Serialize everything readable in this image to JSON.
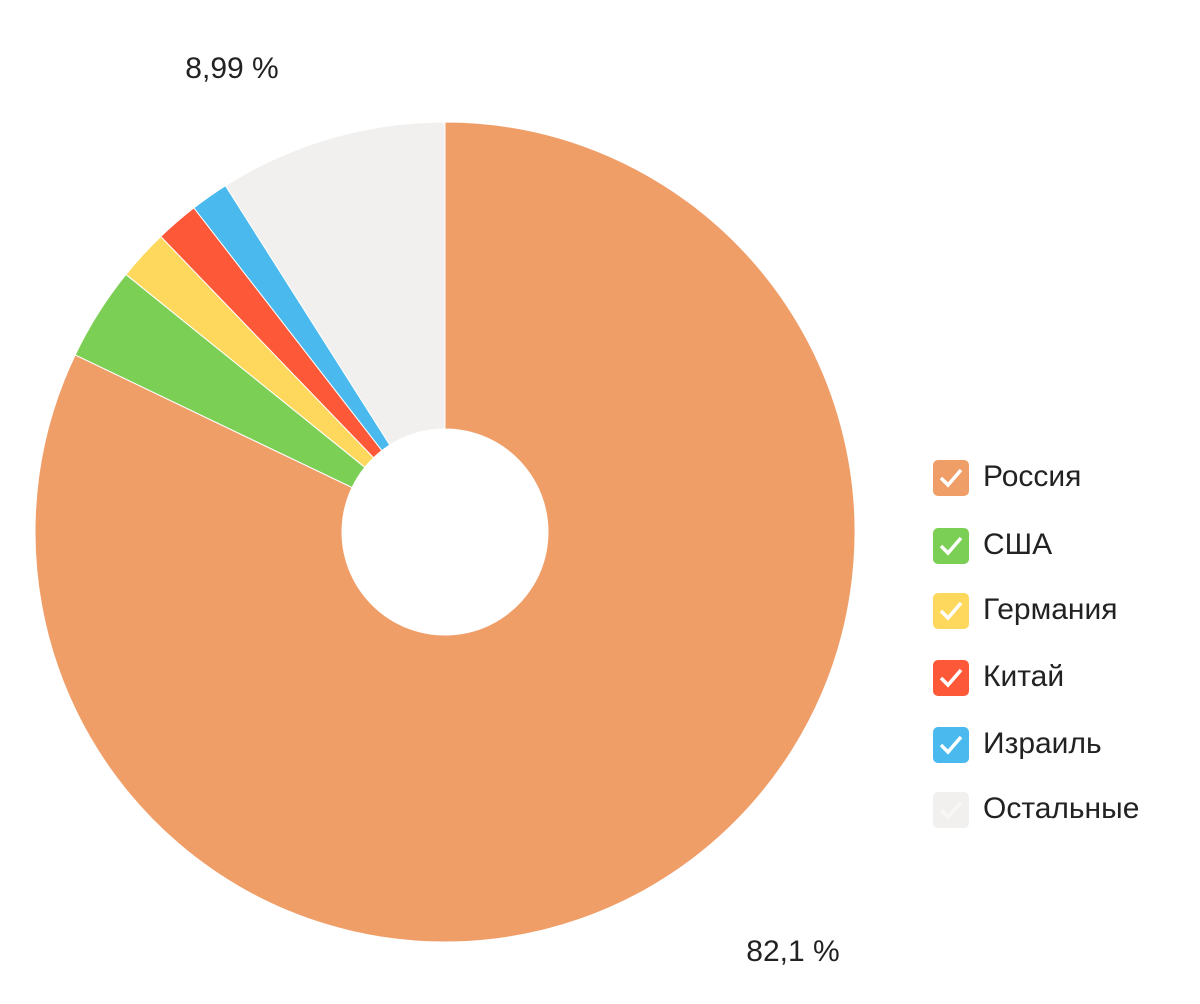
{
  "chart_data": {
    "type": "donut",
    "categories": [
      "Россия",
      "США",
      "Германия",
      "Китай",
      "Израиль",
      "Остальные"
    ],
    "values": [
      82.1,
      3.7,
      2.0,
      1.7,
      1.5,
      8.99
    ],
    "value_labels": [
      "82,1 %",
      null,
      null,
      null,
      null,
      "8,99 %"
    ],
    "colors": [
      "#ef9e68",
      "#7ccf55",
      "#fdd85d",
      "#fd5838",
      "#4ab9ed",
      "#f2f0ee"
    ],
    "legend": "right"
  }
}
